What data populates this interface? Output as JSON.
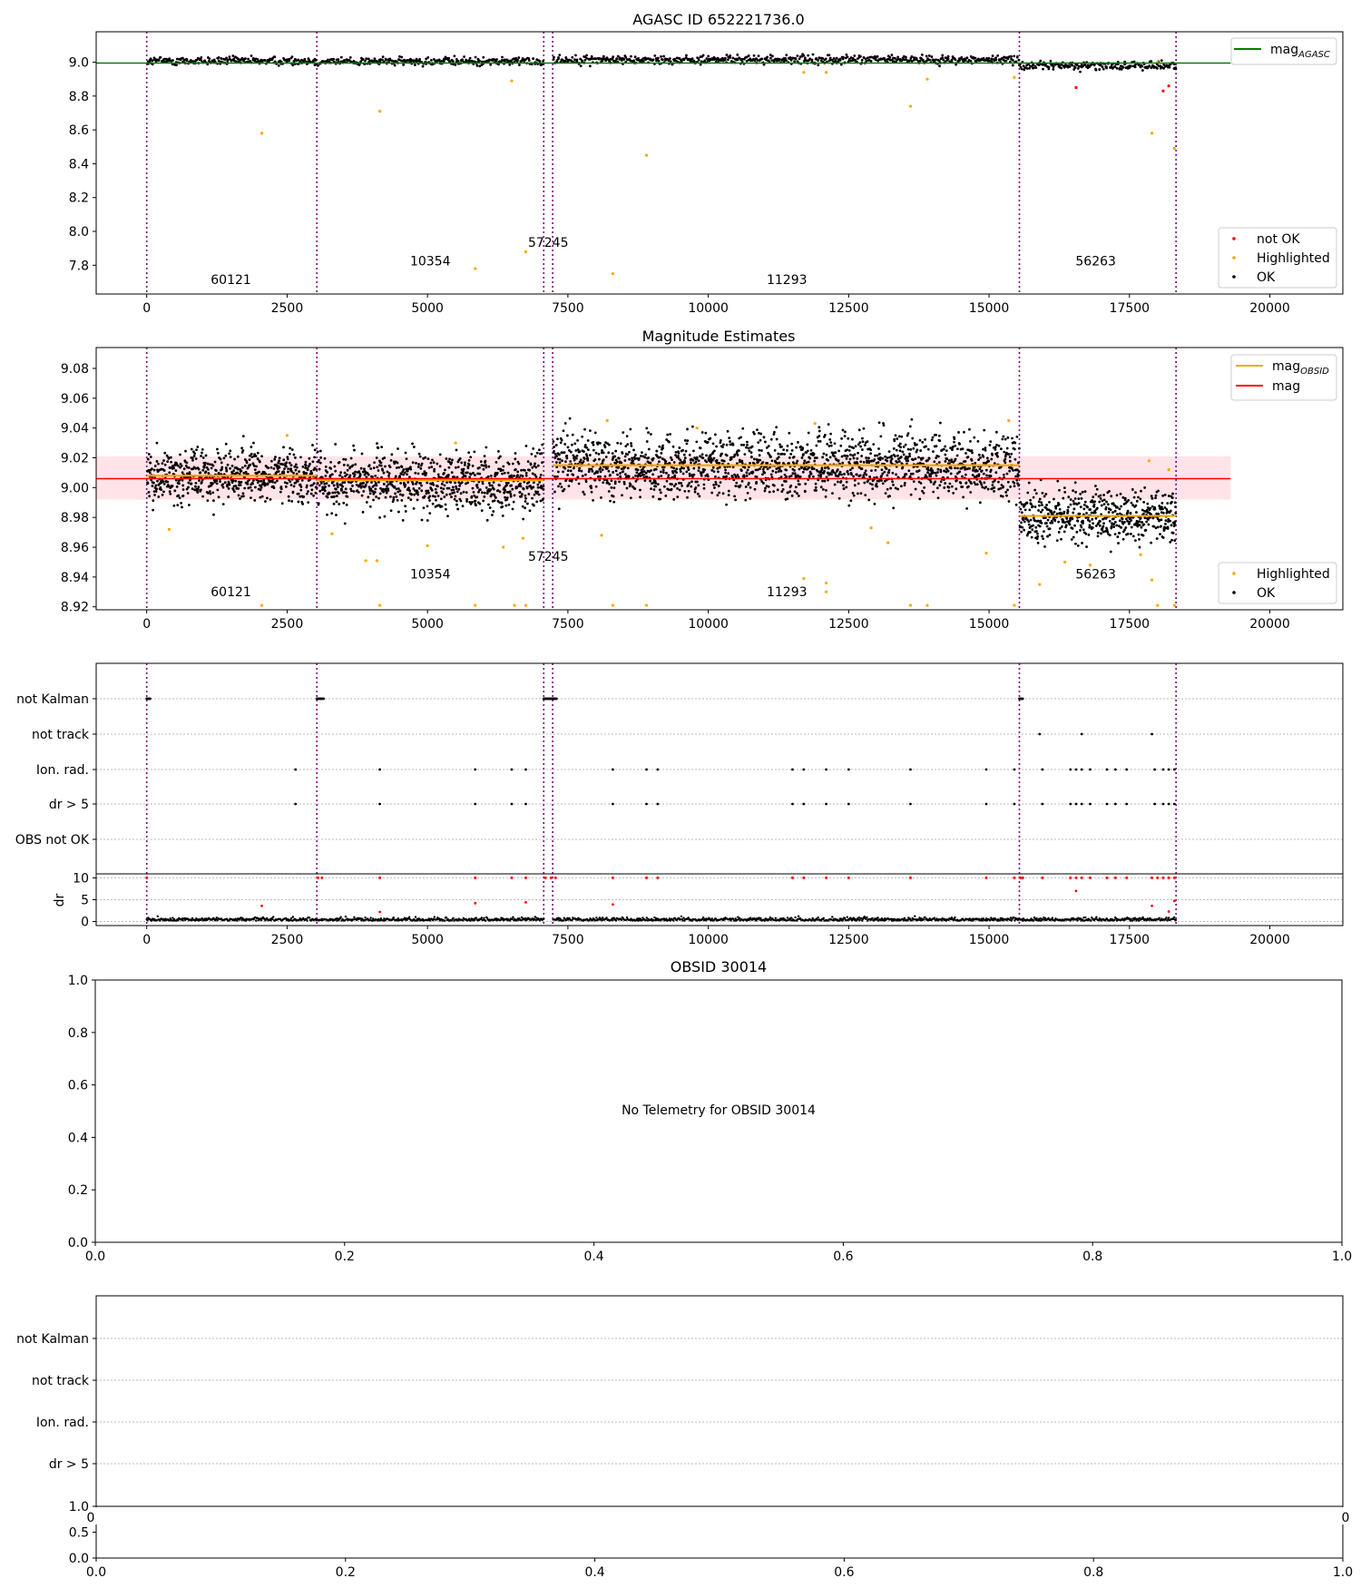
{
  "chart_data": [
    {
      "type": "scatter",
      "title": "AGASC ID 652221736.0",
      "xlim": [
        -900,
        21300
      ],
      "ylim": [
        7.63,
        9.18
      ],
      "xticks": [
        "0",
        "2500",
        "5000",
        "7500",
        "10000",
        "12500",
        "15000",
        "17500",
        "20000"
      ],
      "xtick_values": [
        0,
        2500,
        5000,
        7500,
        10000,
        12500,
        15000,
        17500,
        20000
      ],
      "yticks": [
        "7.8",
        "8.0",
        "8.2",
        "8.4",
        "8.6",
        "8.8",
        "9.0"
      ],
      "ytick_values": [
        7.8,
        8.0,
        8.2,
        8.4,
        8.6,
        8.8,
        9.0
      ],
      "obsid_boundaries": [
        0,
        3030,
        7070,
        7230,
        15540,
        18330
      ],
      "obsid_labels": [
        {
          "text": "60121",
          "x": 1500,
          "y": 7.69
        },
        {
          "text": "10354",
          "x": 5050,
          "y": 7.8
        },
        {
          "text": "57245",
          "x": 7150,
          "y": 7.91
        },
        {
          "text": "11293",
          "x": 11400,
          "y": 7.69
        },
        {
          "text": "56263",
          "x": 16900,
          "y": 7.8
        }
      ],
      "series": [
        {
          "name": "OK",
          "color": "#000000",
          "segments": [
            {
              "x0": 0,
              "x1": 3030,
              "level": 9.008
            },
            {
              "x0": 3030,
              "x1": 7070,
              "level": 9.005
            },
            {
              "x0": 7230,
              "x1": 15540,
              "level": 9.015
            },
            {
              "x0": 15540,
              "x1": 18330,
              "level": 8.98
            }
          ]
        },
        {
          "name": "Highlighted",
          "color": "#ffa500",
          "points": [
            [
              2050,
              8.58
            ],
            [
              4150,
              8.71
            ],
            [
              5850,
              7.78
            ],
            [
              6750,
              7.88
            ],
            [
              8300,
              7.75
            ],
            [
              8900,
              8.45
            ],
            [
              13600,
              8.74
            ],
            [
              13900,
              8.9
            ],
            [
              11700,
              8.94
            ],
            [
              12100,
              8.94
            ],
            [
              17900,
              8.58
            ],
            [
              18300,
              8.49
            ],
            [
              6500,
              8.89
            ],
            [
              15450,
              8.91
            ],
            [
              18000,
              9.0
            ]
          ]
        },
        {
          "name": "not OK",
          "color": "#ff0000",
          "points": [
            [
              16550,
              8.85
            ],
            [
              18100,
              8.83
            ],
            [
              18200,
              8.86
            ]
          ]
        }
      ],
      "lines": [
        {
          "name": "mag_AGASC",
          "legend": "mag",
          "legend_sub": "AGASC",
          "y": 8.995,
          "x0": -900,
          "x1": 19300,
          "color": "#008000"
        }
      ],
      "legend": {
        "upper_right": [
          "mag_AGASC"
        ],
        "lower_right": [
          "not OK",
          "Highlighted",
          "OK"
        ]
      }
    },
    {
      "type": "scatter",
      "title": "Magnitude Estimates",
      "xlim": [
        -900,
        21300
      ],
      "ylim": [
        8.918,
        9.094
      ],
      "xticks": [
        "0",
        "2500",
        "5000",
        "7500",
        "10000",
        "12500",
        "15000",
        "17500",
        "20000"
      ],
      "xtick_values": [
        0,
        2500,
        5000,
        7500,
        10000,
        12500,
        15000,
        17500,
        20000
      ],
      "yticks": [
        "8.92",
        "8.94",
        "8.96",
        "8.98",
        "9.00",
        "9.02",
        "9.04",
        "9.06",
        "9.08"
      ],
      "ytick_values": [
        8.92,
        8.94,
        8.96,
        8.98,
        9.0,
        9.02,
        9.04,
        9.06,
        9.08
      ],
      "obsid_boundaries": [
        0,
        3030,
        7070,
        7230,
        15540,
        18330
      ],
      "obsid_labels": [
        {
          "text": "60121",
          "x": 1500,
          "y": 8.927
        },
        {
          "text": "10354",
          "x": 5050,
          "y": 8.939
        },
        {
          "text": "57245",
          "x": 7150,
          "y": 8.951
        },
        {
          "text": "11293",
          "x": 11400,
          "y": 8.927
        },
        {
          "text": "56263",
          "x": 16900,
          "y": 8.939
        }
      ],
      "series": [
        {
          "name": "OK",
          "color": "#000000",
          "segments": [
            {
              "x0": 0,
              "x1": 3030,
              "level": 9.008,
              "spread": 0.009
            },
            {
              "x0": 3030,
              "x1": 7070,
              "level": 9.004,
              "spread": 0.01
            },
            {
              "x0": 7230,
              "x1": 15540,
              "level": 9.015,
              "spread": 0.011
            },
            {
              "x0": 15540,
              "x1": 18330,
              "level": 8.981,
              "spread": 0.009
            }
          ]
        },
        {
          "name": "Highlighted",
          "color": "#ffa500",
          "points": [
            [
              400,
              8.972
            ],
            [
              2050,
              8.921
            ],
            [
              3300,
              8.969
            ],
            [
              3900,
              8.951
            ],
            [
              4150,
              8.921
            ],
            [
              4100,
              8.951
            ],
            [
              5000,
              8.961
            ],
            [
              5850,
              8.921
            ],
            [
              6350,
              8.96
            ],
            [
              6550,
              8.921
            ],
            [
              6750,
              8.921
            ],
            [
              6700,
              8.966
            ],
            [
              8100,
              8.968
            ],
            [
              8300,
              8.921
            ],
            [
              8900,
              8.921
            ],
            [
              11700,
              8.939
            ],
            [
              12100,
              8.936
            ],
            [
              12100,
              8.93
            ],
            [
              12900,
              8.973
            ],
            [
              13200,
              8.963
            ],
            [
              13600,
              8.921
            ],
            [
              13900,
              8.921
            ],
            [
              14950,
              8.956
            ],
            [
              15450,
              8.921
            ],
            [
              15900,
              8.935
            ],
            [
              16350,
              8.95
            ],
            [
              16800,
              8.948
            ],
            [
              17700,
              8.955
            ],
            [
              17900,
              8.938
            ],
            [
              18000,
              8.921
            ],
            [
              18300,
              8.921
            ],
            [
              18200,
              9.012
            ],
            [
              17850,
              9.018
            ],
            [
              5500,
              9.03
            ],
            [
              8200,
              9.045
            ],
            [
              9800,
              9.04
            ],
            [
              11900,
              9.043
            ],
            [
              15350,
              9.045
            ],
            [
              2500,
              9.035
            ]
          ]
        }
      ],
      "lines": [
        {
          "name": "mag_OBSID",
          "legend": "mag",
          "legend_sub": "OBSID",
          "color": "#ffa500",
          "segments": [
            {
              "x0": 0,
              "x1": 3030,
              "y": 9.008
            },
            {
              "x0": 3030,
              "x1": 7070,
              "y": 9.005
            },
            {
              "x0": 7230,
              "x1": 15540,
              "y": 9.015
            },
            {
              "x0": 15540,
              "x1": 18330,
              "y": 8.981
            }
          ]
        },
        {
          "name": "mag",
          "legend": "mag",
          "color": "#ff0000",
          "y": 9.006,
          "x0": -900,
          "x1": 19300,
          "band": [
            8.992,
            9.021
          ]
        }
      ],
      "legend": {
        "upper_right": [
          "mag_OBSID",
          "mag"
        ],
        "lower_right": [
          "Highlighted",
          "OK"
        ]
      }
    },
    {
      "type": "scatter",
      "title": "",
      "xlim": [
        -900,
        21300
      ],
      "categories": [
        "not Kalman",
        "not track",
        "Ion. rad.",
        "dr > 5",
        "OBS not OK"
      ],
      "xticks": [
        "0",
        "2500",
        "5000",
        "7500",
        "10000",
        "12500",
        "15000",
        "17500",
        "20000"
      ],
      "xtick_values": [
        0,
        2500,
        5000,
        7500,
        10000,
        12500,
        15000,
        17500,
        20000
      ],
      "obsid_boundaries": [
        0,
        3030,
        7070,
        7230,
        15540,
        18330
      ],
      "flags": {
        "not Kalman": [
          [
            0,
            60
          ],
          [
            3030,
            3150
          ],
          [
            7070,
            7300
          ],
          [
            15540,
            15600
          ]
        ],
        "not track": [
          15900,
          16650,
          17900
        ],
        "Ion. rad.": [
          2650,
          4150,
          5850,
          6500,
          6750,
          8300,
          8900,
          9100,
          11500,
          11700,
          12100,
          12500,
          13600,
          14950,
          15450,
          15950,
          16450,
          16550,
          16650,
          16800,
          17100,
          17250,
          17450,
          17950,
          18100,
          18200,
          18300
        ],
        "dr > 5": [
          2650,
          4150,
          5850,
          6500,
          6750,
          8300,
          8900,
          9100,
          11500,
          11700,
          12100,
          12500,
          13600,
          14950,
          15450,
          15950,
          16450,
          16550,
          16650,
          16800,
          17100,
          17250,
          17450,
          17950,
          18100,
          18200,
          18300
        ],
        "OBS not OK": []
      },
      "dr_panel": {
        "ylabel": "dr",
        "ylim": [
          -0.3,
          10.5
        ],
        "yticks": [
          "0",
          "5",
          "10"
        ],
        "ytick_values": [
          0,
          5,
          10
        ],
        "clipped_points": [
          0,
          3050,
          3120,
          4150,
          5850,
          6500,
          6750,
          7100,
          7200,
          7280,
          8300,
          8900,
          9100,
          11500,
          11700,
          12100,
          12500,
          13600,
          14950,
          15450,
          15560,
          15600,
          15950,
          16450,
          16550,
          16650,
          16800,
          17100,
          17250,
          17450,
          17900,
          18000,
          18100,
          18200,
          18300
        ],
        "high_points": [
          [
            2050,
            3.6
          ],
          [
            4150,
            2.2
          ],
          [
            5850,
            4.2
          ],
          [
            6750,
            4.4
          ],
          [
            8300,
            3.9
          ],
          [
            16550,
            7.0
          ],
          [
            17900,
            3.6
          ],
          [
            18200,
            2.3
          ],
          [
            18300,
            4.7
          ]
        ]
      }
    },
    {
      "type": "scatter",
      "title": "OBSID 30014",
      "message": "No Telemetry for OBSID 30014",
      "xlim": [
        0,
        1
      ],
      "ylim": [
        0,
        1
      ],
      "xticks": [
        "0.0",
        "0.2",
        "0.4",
        "0.6",
        "0.8",
        "1.0"
      ],
      "yticks": [
        "0.0",
        "0.2",
        "0.4",
        "0.6",
        "0.8",
        "1.0"
      ]
    },
    {
      "type": "scatter",
      "title": "",
      "categories": [
        "not Kalman",
        "not track",
        "Ion. rad.",
        "dr > 5"
      ],
      "xticks": [
        "0.0",
        "0.2",
        "0.4",
        "0.6",
        "0.8",
        "1.0"
      ],
      "yticks": [
        "0.0",
        "0.5",
        "1.0"
      ],
      "partial_ticks": [
        "0",
        "0"
      ]
    }
  ]
}
